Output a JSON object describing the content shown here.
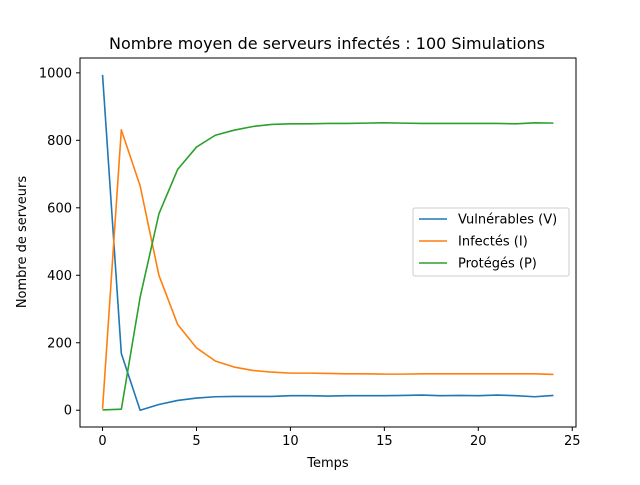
{
  "chart_data": {
    "type": "line",
    "title": "Nombre moyen de serveurs infectés : 100 Simulations",
    "xlabel": "Temps",
    "ylabel": "Nombre de serveurs",
    "xlim": [
      -1.2,
      25.2
    ],
    "ylim": [
      -49.7,
      1044
    ],
    "xticks": [
      0,
      5,
      10,
      15,
      20,
      25
    ],
    "yticks": [
      0,
      200,
      400,
      600,
      800,
      1000
    ],
    "grid": false,
    "legend_position": "center-right",
    "x": [
      0,
      1,
      2,
      3,
      4,
      5,
      6,
      7,
      8,
      9,
      10,
      11,
      12,
      13,
      14,
      15,
      16,
      17,
      18,
      19,
      20,
      21,
      22,
      23,
      24
    ],
    "series": [
      {
        "name": "Vulnérables (V)",
        "color": "#1f77b4",
        "values": [
          994,
          168,
          0,
          17,
          29,
          36,
          40,
          41,
          41,
          41,
          43,
          43,
          42,
          43,
          43,
          43,
          44,
          45,
          43,
          44,
          43,
          45,
          43,
          40,
          44
        ]
      },
      {
        "name": "Infectés (I)",
        "color": "#ff7f0e",
        "values": [
          4,
          831,
          665,
          400,
          254,
          185,
          146,
          128,
          118,
          113,
          110,
          110,
          109,
          108,
          108,
          107,
          107,
          108,
          108,
          108,
          108,
          108,
          108,
          108,
          106
        ]
      },
      {
        "name": "Protégés (P)",
        "color": "#2ca02c",
        "values": [
          1,
          3,
          335,
          582,
          714,
          780,
          815,
          830,
          841,
          847,
          849,
          849,
          850,
          850,
          851,
          852,
          851,
          850,
          850,
          850,
          850,
          850,
          849,
          852,
          851
        ]
      }
    ]
  }
}
